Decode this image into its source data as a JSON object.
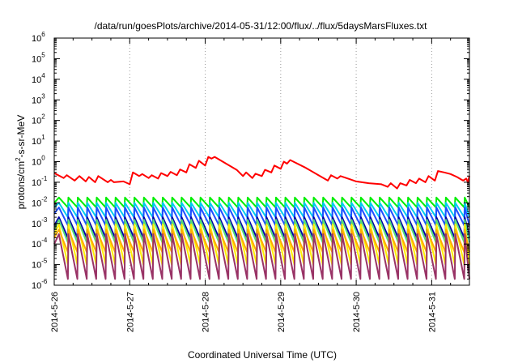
{
  "chart_data": {
    "type": "line",
    "title": "/data/run/goesPlots/archive/2014-05-31/12:00/flux/../flux/5daysMarsFluxes.txt",
    "xlabel": "Coordinated Universal Time (UTC)",
    "ylabel": {
      "prefix": "protons/cm",
      "sup": "2",
      "suffix": "-s-sr-MeV"
    },
    "yscale": "log",
    "ylim": [
      1e-06,
      1000000.0
    ],
    "xlim": [
      "2014-05-26T00:00",
      "2014-05-31T12:00"
    ],
    "x_ticks": [
      "2014-5-26",
      "2014-5-27",
      "2014-5-28",
      "2014-5-29",
      "2014-5-30",
      "2014-5-31"
    ],
    "y_ticks": [
      {
        "base": "10",
        "exp": "-6"
      },
      {
        "base": "10",
        "exp": "-5"
      },
      {
        "base": "10",
        "exp": "-4"
      },
      {
        "base": "10",
        "exp": "-3"
      },
      {
        "base": "10",
        "exp": "-2"
      },
      {
        "base": "10",
        "exp": "-1"
      },
      {
        "base": "10",
        "exp": "0"
      },
      {
        "base": "10",
        "exp": "1"
      },
      {
        "base": "10",
        "exp": "2"
      },
      {
        "base": "10",
        "exp": "3"
      },
      {
        "base": "10",
        "exp": "4"
      },
      {
        "base": "10",
        "exp": "5"
      },
      {
        "base": "10",
        "exp": "6"
      }
    ],
    "grid": {
      "vertical": true,
      "horizontal": false
    },
    "series": [
      {
        "color": "#ff0000",
        "sawtooth": false,
        "points": [
          [
            "2014-05-26T00:00",
            0.28
          ],
          [
            "2014-05-26T03:00",
            0.16
          ],
          [
            "2014-05-26T04:00",
            0.22
          ],
          [
            "2014-05-26T06:30",
            0.12
          ],
          [
            "2014-05-26T08:00",
            0.2
          ],
          [
            "2014-05-26T10:00",
            0.11
          ],
          [
            "2014-05-26T11:00",
            0.18
          ],
          [
            "2014-05-26T13:00",
            0.1
          ],
          [
            "2014-05-26T14:00",
            0.2
          ],
          [
            "2014-05-26T17:00",
            0.1
          ],
          [
            "2014-05-26T18:00",
            0.13
          ],
          [
            "2014-05-26T19:00",
            0.1
          ],
          [
            "2014-05-26T22:00",
            0.11
          ],
          [
            "2014-05-27T00:00",
            0.08
          ],
          [
            "2014-05-27T01:00",
            0.3
          ],
          [
            "2014-05-27T03:00",
            0.2
          ],
          [
            "2014-05-27T04:00",
            0.25
          ],
          [
            "2014-05-27T06:00",
            0.16
          ],
          [
            "2014-05-27T07:00",
            0.22
          ],
          [
            "2014-05-27T09:00",
            0.15
          ],
          [
            "2014-05-27T10:00",
            0.28
          ],
          [
            "2014-05-27T12:00",
            0.2
          ],
          [
            "2014-05-27T13:00",
            0.32
          ],
          [
            "2014-05-27T15:00",
            0.22
          ],
          [
            "2014-05-27T16:00",
            0.42
          ],
          [
            "2014-05-27T18:00",
            0.3
          ],
          [
            "2014-05-27T19:00",
            0.75
          ],
          [
            "2014-05-27T21:00",
            0.5
          ],
          [
            "2014-05-27T22:00",
            1.1
          ],
          [
            "2014-05-28T00:00",
            0.65
          ],
          [
            "2014-05-28T01:00",
            1.7
          ],
          [
            "2014-05-28T02:00",
            1.4
          ],
          [
            "2014-05-28T03:00",
            1.7
          ],
          [
            "2014-05-28T10:00",
            0.4
          ],
          [
            "2014-05-28T12:00",
            0.2
          ],
          [
            "2014-05-28T13:00",
            0.3
          ],
          [
            "2014-05-28T15:00",
            0.16
          ],
          [
            "2014-05-28T16:00",
            0.26
          ],
          [
            "2014-05-28T18:00",
            0.2
          ],
          [
            "2014-05-28T19:00",
            0.4
          ],
          [
            "2014-05-28T21:00",
            0.3
          ],
          [
            "2014-05-28T22:00",
            0.65
          ],
          [
            "2014-05-29T00:00",
            0.45
          ],
          [
            "2014-05-29T01:00",
            1.0
          ],
          [
            "2014-05-29T02:00",
            0.8
          ],
          [
            "2014-05-29T03:00",
            1.2
          ],
          [
            "2014-05-29T08:00",
            0.5
          ],
          [
            "2014-05-29T12:00",
            0.22
          ],
          [
            "2014-05-29T15:00",
            0.12
          ],
          [
            "2014-05-29T16:00",
            0.22
          ],
          [
            "2014-05-29T18:00",
            0.15
          ],
          [
            "2014-05-29T19:00",
            0.2
          ],
          [
            "2014-05-29T22:00",
            0.14
          ],
          [
            "2014-05-30T00:00",
            0.11
          ],
          [
            "2014-05-30T04:00",
            0.09
          ],
          [
            "2014-05-30T08:00",
            0.08
          ],
          [
            "2014-05-30T10:00",
            0.06
          ],
          [
            "2014-05-30T11:00",
            0.09
          ],
          [
            "2014-05-30T13:00",
            0.05
          ],
          [
            "2014-05-30T14:00",
            0.09
          ],
          [
            "2014-05-30T16:00",
            0.07
          ],
          [
            "2014-05-30T17:00",
            0.13
          ],
          [
            "2014-05-30T19:00",
            0.09
          ],
          [
            "2014-05-30T20:00",
            0.15
          ],
          [
            "2014-05-30T22:00",
            0.1
          ],
          [
            "2014-05-30T23:00",
            0.2
          ],
          [
            "2014-05-31T01:00",
            0.12
          ],
          [
            "2014-05-31T02:00",
            0.35
          ],
          [
            "2014-05-31T04:00",
            0.3
          ],
          [
            "2014-05-31T06:00",
            0.25
          ],
          [
            "2014-05-31T08:00",
            0.18
          ],
          [
            "2014-05-31T10:00",
            0.12
          ],
          [
            "2014-05-31T11:00",
            0.15
          ],
          [
            "2014-05-31T11:30",
            0.1
          ],
          [
            "2014-05-31T12:00",
            0.2
          ]
        ]
      },
      {
        "color": "#00ee00",
        "sawtooth": true,
        "period_hours": 3,
        "peak": 0.018,
        "trough": 0.006,
        "start_value": 0.01
      },
      {
        "color": "#00ccee",
        "sawtooth": true,
        "period_hours": 3,
        "peak": 0.01,
        "trough": 0.002,
        "start_value": 0.006
      },
      {
        "color": "#1f4fff",
        "sawtooth": true,
        "period_hours": 3,
        "peak": 0.006,
        "trough": 0.0008,
        "start_value": 0.003
      },
      {
        "color": "#0000aa",
        "sawtooth": true,
        "period_hours": 3,
        "peak": 0.002,
        "trough": 0.0002,
        "start_value": 0.0008
      },
      {
        "color": "#55dd77",
        "sawtooth": true,
        "period_hours": 3,
        "peak": 0.0015,
        "trough": 0.00012,
        "start_value": 0.0005
      },
      {
        "color": "#ffee00",
        "sawtooth": true,
        "period_hours": 3,
        "peak": 0.0009,
        "trough": 1e-05,
        "start_value": 0.0003
      },
      {
        "color": "#ffaa00",
        "sawtooth": true,
        "period_hours": 3,
        "peak": 0.0005,
        "trough": 4e-05,
        "start_value": 0.0002
      },
      {
        "color": "#993366",
        "sawtooth": true,
        "period_hours": 3,
        "peak": 0.0003,
        "trough": 2e-06,
        "start_value": 0.0001
      }
    ]
  }
}
